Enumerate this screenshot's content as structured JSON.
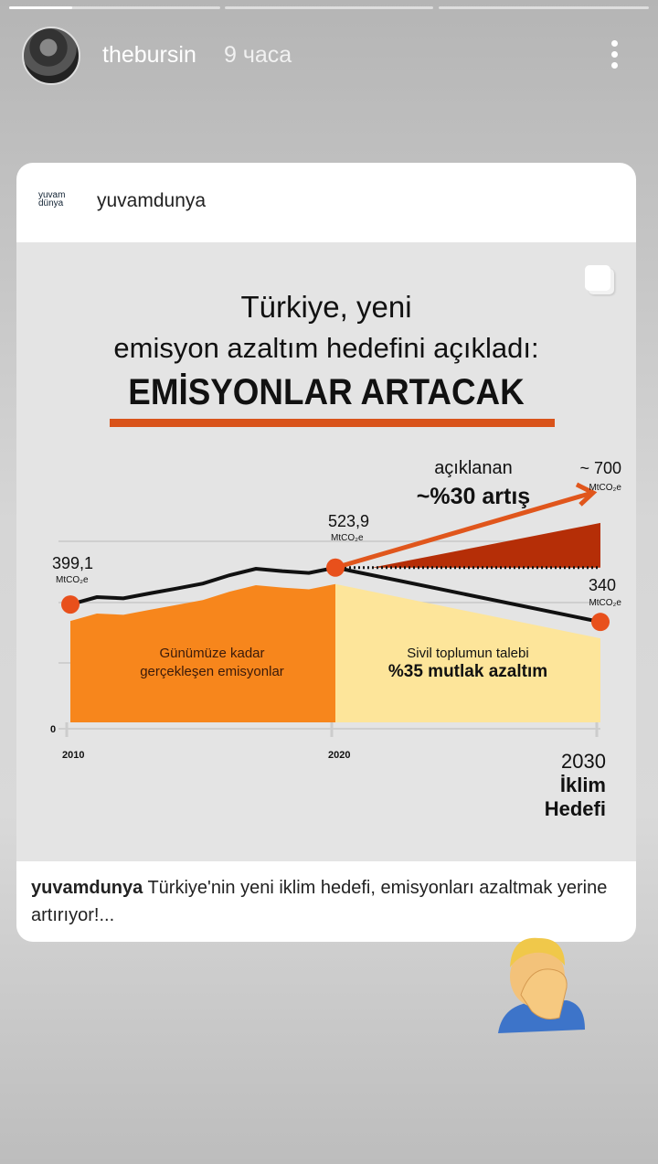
{
  "story": {
    "username": "thebursin",
    "time": "9 часа",
    "progress_segments": [
      0.3,
      0,
      0
    ]
  },
  "post": {
    "logo_line1": "yuvam",
    "logo_line2": "dünya",
    "username": "yuvamdunya",
    "title_line1": "Türkiye, yeni",
    "title_line2": "emisyon azaltım hedefini açıkladı:",
    "headline": "EMİSYONLAR ARTACAK",
    "caption_user": "yuvamdunya",
    "caption_text": " Türkiye'nin yeni iklim hedefi, emisyonları azaltmak yerine artırıyor!..."
  },
  "chart_data": {
    "type": "area",
    "x_ticks": [
      "2010",
      "2020"
    ],
    "x_end_label": [
      "2030",
      "İklim",
      "Hedefi"
    ],
    "y_tick": "0",
    "unit": "MtCO2e",
    "historical": {
      "name": "Günümüze kadar gerçekleşen emisyonlar",
      "label1": "Günümüze kadar",
      "label2": "gerçekleşen emisyonlar",
      "x": [
        2010,
        2011,
        2012,
        2013,
        2014,
        2015,
        2016,
        2017,
        2018,
        2019,
        2020
      ],
      "y": [
        399.1,
        424,
        420,
        437,
        453,
        470,
        498,
        520,
        512,
        506,
        523.9
      ]
    },
    "demand": {
      "label1": "Sivil toplumun talebi",
      "label2": "%35 mutlak azaltım",
      "x": [
        2020,
        2030
      ],
      "y": [
        523.9,
        340
      ]
    },
    "announced": {
      "label1": "açıklanan",
      "label2": "~%30 artış",
      "x": [
        2020,
        2030
      ],
      "y": [
        523.9,
        700
      ]
    },
    "annotations": [
      {
        "value": "399,1",
        "unit": "MtCO₂e"
      },
      {
        "value": "523,9",
        "unit": "MtCO₂e"
      },
      {
        "value": "340",
        "unit": "MtCO₂e"
      },
      {
        "value": "~ 700",
        "unit": "MtCO₂e"
      }
    ],
    "colors": {
      "historical": "#f7861c",
      "demand": "#fde59a",
      "increase": "#b52e07",
      "arrow": "#e0561c",
      "line": "#111111",
      "dot": "#e8501c"
    }
  }
}
